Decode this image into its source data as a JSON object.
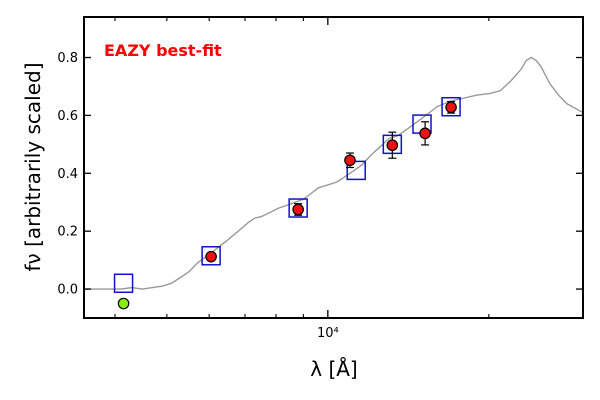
{
  "chart_data": {
    "type": "scatter",
    "title": "",
    "annotation": "EAZY best-fit",
    "xlabel": "λ [Å]",
    "ylabel": "fν [arbitrarily scaled]",
    "xscale": "log",
    "xlim": [
      3500,
      30000
    ],
    "ylim": [
      -0.1,
      0.94
    ],
    "x_tick_labels": [
      {
        "value": 10000,
        "label": "10⁴"
      }
    ],
    "x_minor_ticks": [
      4000,
      5000,
      6000,
      7000,
      8000,
      9000,
      20000,
      30000
    ],
    "y_ticks": [
      0.0,
      0.2,
      0.4,
      0.6,
      0.8
    ],
    "y_tick_labels": [
      "0.0",
      "0.2",
      "0.4",
      "0.6",
      "0.8"
    ],
    "colors": {
      "sed_line": "#999999",
      "model_box": "#1111cc",
      "observed_fill": "#ee1111",
      "upper_point_fill": "#88ee11",
      "annotation": "#ff0000"
    },
    "series": [
      {
        "name": "EAZY best-fit template",
        "style": "line",
        "x": [
          3500,
          3700,
          3900,
          4100,
          4300,
          4500,
          4700,
          4900,
          5100,
          5300,
          5500,
          5700,
          5900,
          6100,
          6300,
          6500,
          6700,
          6900,
          7100,
          7300,
          7500,
          7800,
          8100,
          8400,
          8700,
          9000,
          9300,
          9600,
          10000,
          10400,
          10800,
          11200,
          11600,
          12000,
          12500,
          13000,
          13500,
          14000,
          14500,
          15000,
          15500,
          16000,
          17000,
          18000,
          19000,
          20000,
          21000,
          22000,
          23000,
          23500,
          24000,
          24500,
          25000,
          25500,
          26000,
          27000,
          28000,
          29000,
          30000
        ],
        "y": [
          0.0,
          0.0,
          0.0,
          0.0,
          0.005,
          0.0,
          0.005,
          0.01,
          0.02,
          0.04,
          0.06,
          0.09,
          0.11,
          0.13,
          0.15,
          0.17,
          0.19,
          0.21,
          0.23,
          0.245,
          0.25,
          0.265,
          0.28,
          0.29,
          0.3,
          0.31,
          0.33,
          0.35,
          0.36,
          0.37,
          0.39,
          0.41,
          0.43,
          0.46,
          0.49,
          0.52,
          0.53,
          0.55,
          0.57,
          0.59,
          0.61,
          0.63,
          0.65,
          0.66,
          0.67,
          0.675,
          0.685,
          0.72,
          0.76,
          0.79,
          0.8,
          0.79,
          0.77,
          0.74,
          0.71,
          0.67,
          0.64,
          0.625,
          0.61
        ]
      },
      {
        "name": "Model photometry",
        "style": "open-square",
        "x": [
          4150,
          6050,
          8800,
          11300,
          13200,
          15000,
          17000
        ],
        "y": [
          0.02,
          0.115,
          0.28,
          0.41,
          0.5,
          0.57,
          0.63
        ]
      },
      {
        "name": "Observed photometry",
        "style": "circle-errorbar",
        "x": [
          6050,
          8800,
          11000,
          13200,
          15200,
          17000
        ],
        "y": [
          0.112,
          0.275,
          0.445,
          0.497,
          0.538,
          0.628
        ],
        "yerr": [
          0.012,
          0.02,
          0.025,
          0.045,
          0.04,
          0.02
        ]
      },
      {
        "name": "Low point",
        "style": "green-circle",
        "x": [
          4150
        ],
        "y": [
          -0.05
        ],
        "yerr": [
          0.012
        ]
      }
    ]
  }
}
